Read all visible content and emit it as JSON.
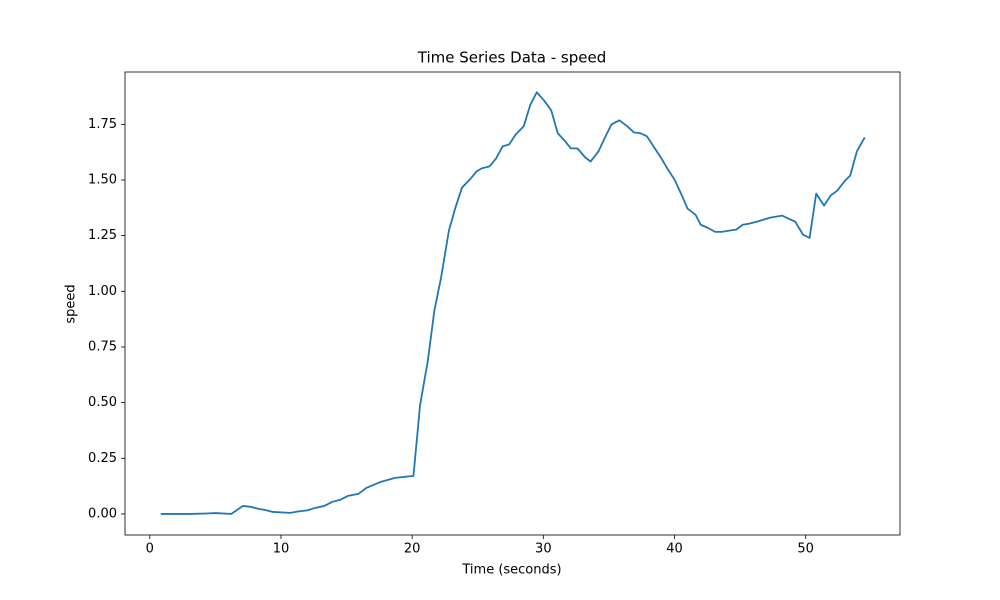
{
  "chart_data": {
    "type": "line",
    "title": "Time Series Data - speed",
    "x_label": "Time (seconds)",
    "y_label": "speed",
    "color": "#1f77b4",
    "x": [
      0.84,
      3.1,
      4.3,
      5.0,
      5.6,
      6.2,
      7.1,
      7.7,
      8.3,
      8.8,
      9.4,
      10.7,
      11.3,
      12.0,
      12.6,
      13.3,
      13.9,
      14.5,
      15.1,
      15.9,
      16.5,
      17.6,
      18.7,
      19.5,
      20.1,
      20.6,
      21.2,
      21.7,
      22.2,
      22.8,
      23.3,
      23.8,
      24.4,
      24.9,
      25.3,
      25.9,
      26.4,
      26.9,
      27.4,
      27.9,
      28.5,
      29.0,
      29.5,
      30.1,
      30.6,
      31.1,
      31.6,
      32.1,
      32.6,
      33.2,
      33.6,
      34.2,
      34.7,
      35.2,
      35.8,
      36.4,
      36.9,
      37.4,
      37.9,
      38.4,
      39.0,
      39.5,
      40.0,
      40.6,
      41.0,
      41.6,
      42.0,
      42.5,
      43.1,
      43.6,
      44.1,
      44.7,
      45.2,
      45.7,
      46.3,
      46.8,
      47.3,
      48.2,
      48.7,
      49.2,
      49.8,
      50.3,
      50.8,
      51.4,
      51.9,
      52.4,
      53.0,
      53.4,
      53.9,
      54.5
    ],
    "values": [
      0,
      0,
      0.002,
      0.004,
      0.002,
      0,
      0.036,
      0.032,
      0.023,
      0.018,
      0.009,
      0.005,
      0.011,
      0.016,
      0.027,
      0.036,
      0.054,
      0.063,
      0.081,
      0.09,
      0.117,
      0.144,
      0.162,
      0.167,
      0.171,
      0.487,
      0.69,
      0.916,
      1.06,
      1.272,
      1.376,
      1.466,
      1.502,
      1.538,
      1.552,
      1.561,
      1.597,
      1.651,
      1.66,
      1.705,
      1.741,
      1.836,
      1.894,
      1.854,
      1.813,
      1.71,
      1.678,
      1.642,
      1.642,
      1.601,
      1.583,
      1.628,
      1.691,
      1.75,
      1.768,
      1.741,
      1.714,
      1.71,
      1.696,
      1.651,
      1.597,
      1.547,
      1.502,
      1.425,
      1.371,
      1.344,
      1.299,
      1.286,
      1.267,
      1.267,
      1.272,
      1.277,
      1.299,
      1.304,
      1.313,
      1.322,
      1.331,
      1.34,
      1.326,
      1.313,
      1.254,
      1.24,
      1.439,
      1.385,
      1.43,
      1.452,
      1.497,
      1.52,
      1.628,
      1.691
    ],
    "xlim": [
      -1.89,
      57.19
    ],
    "xticks": [
      0,
      10,
      20,
      30,
      40,
      50
    ],
    "ylim": [
      -0.0945,
      1.985
    ],
    "yticks": [
      {
        "value": 0,
        "label": "0.00"
      },
      {
        "value": 0.25,
        "label": "0.25"
      },
      {
        "value": 0.5,
        "label": "0.50"
      },
      {
        "value": 0.75,
        "label": "0.75"
      },
      {
        "value": 1,
        "label": "1.00"
      },
      {
        "value": 1.25,
        "label": "1.25"
      },
      {
        "value": 1.5,
        "label": "1.50"
      },
      {
        "value": 1.75,
        "label": "1.75"
      }
    ]
  }
}
